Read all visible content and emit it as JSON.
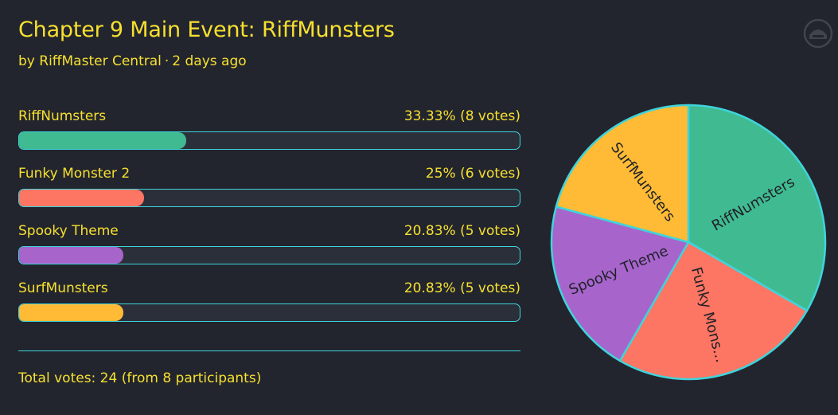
{
  "poll": {
    "title": "Chapter 9 Main Event: RiffMunsters",
    "author": "by RiffMaster Central",
    "separator": "·",
    "posted": "2 days ago",
    "total": "Total votes: 24 (from 8 participants)"
  },
  "options": [
    {
      "label": "RiffNumsters",
      "result": "33.33% (8 votes)",
      "fraction": 0.3333,
      "color": "#40bb91"
    },
    {
      "label": "Funky Monster 2",
      "result": "25% (6 votes)",
      "fraction": 0.25,
      "color": "#fd7563"
    },
    {
      "label": "Spooky Theme",
      "result": "20.83% (5 votes)",
      "fraction": 0.2083,
      "color": "#a765cc"
    },
    {
      "label": "SurfMunsters",
      "result": "20.83% (5 votes)",
      "fraction": 0.2083,
      "color": "#ffbb35"
    }
  ],
  "chart_data": {
    "type": "pie",
    "categories": [
      "RiffNumsters",
      "Funky Mons...",
      "Spooky Theme",
      "SurfMunsters"
    ],
    "values": [
      8,
      6,
      5,
      5
    ],
    "colors": [
      "#40bb91",
      "#fd7563",
      "#a765cc",
      "#ffbb35"
    ],
    "slice_border_color": "#3fd4dc"
  },
  "colors": {
    "background": "#22252e",
    "text": "#f7e02f",
    "accent": "#3fd4dc",
    "track": "#2b2f3a"
  },
  "icons": {
    "logo": "helmet-logo-icon"
  }
}
